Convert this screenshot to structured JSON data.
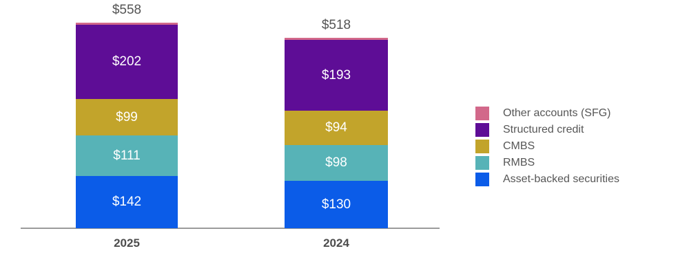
{
  "chart_data": {
    "type": "bar",
    "stacked": true,
    "orientation": "vertical",
    "categories": [
      "2025",
      "2024"
    ],
    "totals": [
      558,
      518
    ],
    "value_prefix": "$",
    "series": [
      {
        "name": "Other accounts (SFG)",
        "color": "#d2688a",
        "values": [
          null,
          null
        ]
      },
      {
        "name": "Structured credit",
        "color": "#5e0d96",
        "values": [
          202,
          193
        ]
      },
      {
        "name": "CMBS",
        "color": "#c2a42b",
        "values": [
          99,
          94
        ]
      },
      {
        "name": "RMBS",
        "color": "#57b3b7",
        "values": [
          111,
          98
        ]
      },
      {
        "name": "Asset-backed securities",
        "color": "#0b5ce8",
        "values": [
          142,
          130
        ]
      }
    ],
    "legend_position": "right",
    "legend_items": [
      {
        "label": "Other accounts (SFG)",
        "color": "#d2688a"
      },
      {
        "label": "Structured credit",
        "color": "#5e0d96"
      },
      {
        "label": "CMBS",
        "color": "#c2a42b"
      },
      {
        "label": "RMBS",
        "color": "#57b3b7"
      },
      {
        "label": "Asset-backed securities",
        "color": "#0b5ce8"
      }
    ],
    "grid": false,
    "axis_line_color": "#9b9b9b",
    "total_label_color": "#545454",
    "tick_label_color": "#4d4d4d",
    "segment_label_color": "#ffffff"
  }
}
